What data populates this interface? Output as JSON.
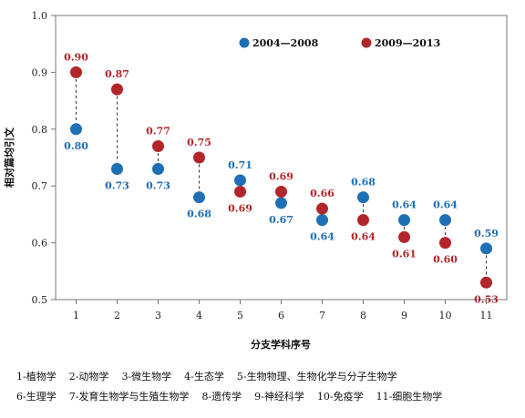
{
  "chart_data": {
    "type": "scatter",
    "title": "",
    "xlabel": "分支学科序号",
    "ylabel": "相对篇均引文",
    "x": [
      1,
      2,
      3,
      4,
      5,
      6,
      7,
      8,
      9,
      10,
      11
    ],
    "xlim": [
      0.5,
      11.5
    ],
    "ylim": [
      0.5,
      1.0
    ],
    "yticks": [
      "0.5",
      "0.6",
      "0.7",
      "0.8",
      "0.9",
      "1.0"
    ],
    "grid": false,
    "legend": "top-right",
    "connectors": "dashed",
    "series": [
      {
        "name": "2004—2008",
        "color": "#1f6fb4",
        "values": [
          0.8,
          0.73,
          0.73,
          0.68,
          0.71,
          0.67,
          0.64,
          0.68,
          0.64,
          0.64,
          0.59
        ],
        "labels": [
          "0.80",
          "0.73",
          "0.73",
          "0.68",
          "0.71",
          "0.67",
          "0.64",
          "0.68",
          "0.64",
          "0.64",
          "0.59"
        ]
      },
      {
        "name": "2009—2013",
        "color": "#b2252a",
        "values": [
          0.9,
          0.87,
          0.77,
          0.75,
          0.69,
          0.69,
          0.66,
          0.64,
          0.61,
          0.6,
          0.53
        ],
        "labels": [
          "0.90",
          "0.87",
          "0.77",
          "0.75",
          "0.69",
          "0.69",
          "0.66",
          "0.64",
          "0.61",
          "0.60",
          "0.53"
        ]
      }
    ]
  },
  "notes": {
    "row1": [
      "1-植物学",
      "2-动物学",
      "3-微生物学",
      "4-生态学",
      "5-生物物理、生物化学与分子生物学"
    ],
    "row2": [
      "6-生理学",
      "7-发育生物学与生殖生物学",
      "8-遗传学",
      "9-神经科学",
      "10-免疫学",
      "11-细胞生物学"
    ]
  }
}
